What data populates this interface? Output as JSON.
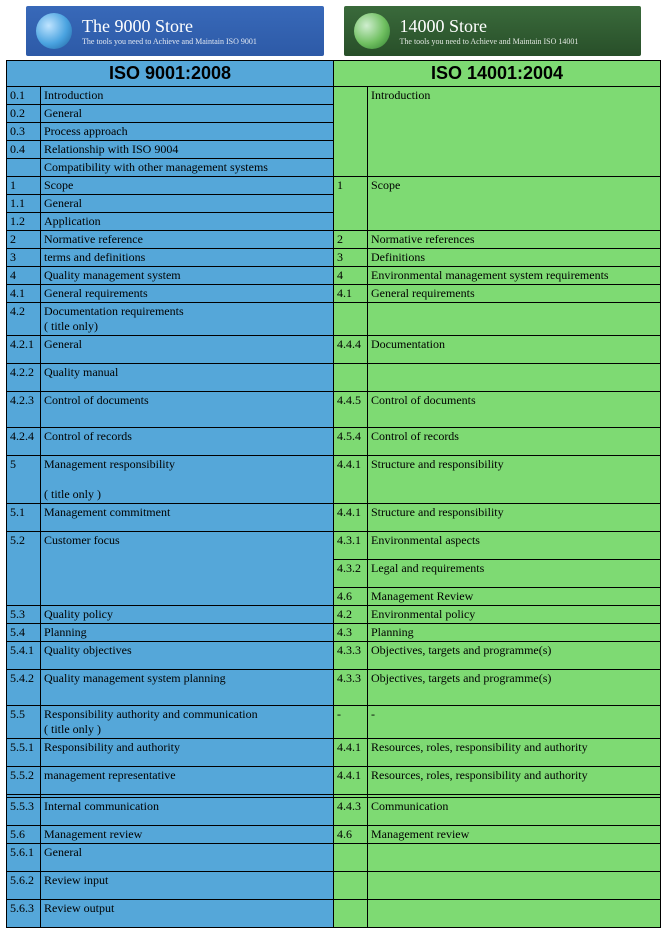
{
  "banners": {
    "left": {
      "title": "The 9000 Store",
      "sub": "The tools you need to Achieve and Maintain ISO 9001"
    },
    "right": {
      "title": "14000 Store",
      "sub": "The tools you need to Achieve and Maintain ISO 14001"
    }
  },
  "headers": {
    "left": "ISO 9001:2008",
    "right": "ISO 14001:2004"
  },
  "colors": {
    "blue": "#55a7d9",
    "green": "#7eda73",
    "border": "#000000"
  },
  "fontsize": {
    "header": 18,
    "body": 12
  },
  "rows": [
    {
      "ln": "0.1",
      "lt": "Introduction",
      "rn": "",
      "rt": "Introduction",
      "rrs": 5,
      "h": ""
    },
    {
      "ln": "0.2",
      "lt": "General",
      "h": ""
    },
    {
      "ln": "0.3",
      "lt": "Process approach",
      "h": ""
    },
    {
      "ln": "0.4",
      "lt": "Relationship with ISO 9004",
      "h": ""
    },
    {
      "ln": "",
      "lt": "Compatibility with other management systems",
      "h": ""
    },
    {
      "ln": "1",
      "lt": "Scope",
      "rn": "1",
      "rt": "Scope",
      "rrs": 3,
      "h": ""
    },
    {
      "ln": "1.1",
      "lt": "General",
      "h": ""
    },
    {
      "ln": "1.2",
      "lt": "Application",
      "h": ""
    },
    {
      "ln": "2",
      "lt": "Normative reference",
      "rn": "2",
      "rt": "Normative references",
      "h": ""
    },
    {
      "ln": "3",
      "lt": "terms and definitions",
      "rn": "3",
      "rt": "Definitions",
      "h": ""
    },
    {
      "ln": "4",
      "lt": "Quality management system",
      "rn": "4",
      "rt": "Environmental management system requirements",
      "h": ""
    },
    {
      "ln": "4.1",
      "lt": "General requirements",
      "rn": "4.1",
      "rt": "General requirements",
      "h": ""
    },
    {
      "ln": "4.2",
      "lt": "Documentation requirements\n( title only)",
      "rn": "",
      "rt": "",
      "h": "h28"
    },
    {
      "ln": "4.2.1",
      "lt": "General",
      "rn": "4.4.4",
      "rt": "Documentation",
      "h": "h28"
    },
    {
      "ln": "4.2.2",
      "lt": "Quality manual",
      "rn": "",
      "rt": "",
      "h": "h28"
    },
    {
      "ln": "4.2.3",
      "lt": "Control of documents",
      "rn": "4.4.5",
      "rt": "Control of documents",
      "h": "h36"
    },
    {
      "ln": "4.2.4",
      "lt": "Control of records",
      "rn": "4.5.4",
      "rt": "Control of records",
      "h": "h28"
    },
    {
      "ln": "5",
      "lt": "Management responsibility\n\n( title only )",
      "rn": "4.4.1",
      "rt": "Structure   and responsibility",
      "h": "h44"
    },
    {
      "ln": "5.1",
      "lt": "Management commitment",
      "rn": "4.4.1",
      "rt": "Structure and responsibility",
      "h": "h28"
    },
    {
      "ln": "5.2",
      "lt": "Customer focus",
      "lrs": 3,
      "rn": "4.3.1",
      "rt": "Environmental aspects",
      "h": "h28"
    },
    {
      "rn": "4.3.2",
      "rt": "Legal and requirements",
      "h": "h28",
      "nol": true
    },
    {
      "rn": "4.6",
      "rt": "Management Review",
      "h": "",
      "nol": true
    },
    {
      "ln": "5.3",
      "lt": "Quality policy",
      "rn": "4.2",
      "rt": "Environmental policy",
      "h": ""
    },
    {
      "ln": "5.4",
      "lt": "Planning",
      "rn": "4.3",
      "rt": "Planning",
      "h": ""
    },
    {
      "ln": "5.4.1",
      "lt": "Quality objectives",
      "rn": "4.3.3",
      "rt": "Objectives, targets and programme(s)",
      "h": "h28"
    },
    {
      "ln": "5.4.2",
      "lt": "Quality management system planning",
      "rn": "4.3.3",
      "rt": "Objectives, targets and programme(s)",
      "h": "h36"
    },
    {
      "ln": "5.5",
      "lt": "Responsibility authority and communication\n( title only )",
      "rn": "-",
      "rt": "-",
      "h": "h28"
    },
    {
      "ln": "5.5.1",
      "lt": "Responsibility and authority",
      "rn": "4.4.1",
      "rt": "Resources, roles, responsibility and authority",
      "h": "h28"
    },
    {
      "ln": "5.5.2",
      "lt": "management representative",
      "rn": "4.4.1",
      "rt": "Resources, roles, responsibility and authority",
      "h": "h28"
    },
    {
      "ln": "",
      "lt": "",
      "rn": "",
      "rt": "",
      "h": ""
    },
    {
      "ln": "5.5.3",
      "lt": "Internal communication",
      "rn": "4.4.3",
      "rt": "Communication",
      "h": "h28"
    },
    {
      "ln": "5.6",
      "lt": "Management review",
      "rn": "4.6",
      "rt": "Management review",
      "h": ""
    },
    {
      "ln": "5.6.1",
      "lt": "General",
      "rn": "",
      "rt": "",
      "h": "h28"
    },
    {
      "ln": "5.6.2",
      "lt": "Review input",
      "rn": "",
      "rt": "",
      "h": "h28"
    },
    {
      "ln": "5.6.3",
      "lt": "Review output",
      "rn": "",
      "rt": "",
      "h": "h28"
    }
  ]
}
